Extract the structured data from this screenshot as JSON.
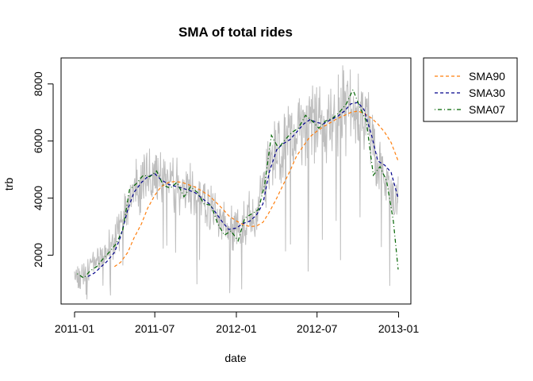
{
  "chart_data": {
    "type": "line",
    "title": "SMA of total rides",
    "xlabel": "date",
    "ylabel": "trb",
    "x_ticks": [
      "2011-01",
      "2011-07",
      "2012-01",
      "2012-07",
      "2013-01"
    ],
    "y_ticks": [
      2000,
      4000,
      6000,
      8000
    ],
    "xlim": [
      "2011-01-01",
      "2012-12-31"
    ],
    "ylim": [
      400,
      8800
    ],
    "legend_position": "top-right outside plot",
    "series": [
      {
        "name": "trb",
        "color": "#bebebe",
        "line_style": "solid",
        "monthly_mean": [
          {
            "x": "2011-01",
            "y": 1230
          },
          {
            "x": "2011-02",
            "y": 1720
          },
          {
            "x": "2011-03",
            "y": 2070
          },
          {
            "x": "2011-04",
            "y": 3160
          },
          {
            "x": "2011-05",
            "y": 4380
          },
          {
            "x": "2011-06",
            "y": 4780
          },
          {
            "x": "2011-07",
            "y": 4560
          },
          {
            "x": "2011-08",
            "y": 4410
          },
          {
            "x": "2011-09",
            "y": 4250
          },
          {
            "x": "2011-10",
            "y": 3980
          },
          {
            "x": "2011-11",
            "y": 3410
          },
          {
            "x": "2011-12",
            "y": 2820
          },
          {
            "x": "2012-01",
            "y": 3120
          },
          {
            "x": "2012-02",
            "y": 3560
          },
          {
            "x": "2012-03",
            "y": 5320
          },
          {
            "x": "2012-04",
            "y": 5810
          },
          {
            "x": "2012-05",
            "y": 6320
          },
          {
            "x": "2012-06",
            "y": 6760
          },
          {
            "x": "2012-07",
            "y": 6560
          },
          {
            "x": "2012-08",
            "y": 6920
          },
          {
            "x": "2012-09",
            "y": 7280
          },
          {
            "x": "2012-10",
            "y": 6900
          },
          {
            "x": "2012-11",
            "y": 5080
          },
          {
            "x": "2012-12",
            "y": 3990
          }
        ]
      },
      {
        "name": "SMA90",
        "color": "#ff7f0e",
        "line_style": "dashed",
        "values": [
          {
            "x": "2011-04-01",
            "y": 1600
          },
          {
            "x": "2011-04-15",
            "y": 1750
          },
          {
            "x": "2011-05-01",
            "y": 2100
          },
          {
            "x": "2011-05-15",
            "y": 2600
          },
          {
            "x": "2011-06-01",
            "y": 3100
          },
          {
            "x": "2011-06-15",
            "y": 3650
          },
          {
            "x": "2011-07-01",
            "y": 4100
          },
          {
            "x": "2011-07-15",
            "y": 4400
          },
          {
            "x": "2011-08-01",
            "y": 4550
          },
          {
            "x": "2011-08-15",
            "y": 4580
          },
          {
            "x": "2011-09-01",
            "y": 4550
          },
          {
            "x": "2011-09-15",
            "y": 4470
          },
          {
            "x": "2011-10-01",
            "y": 4380
          },
          {
            "x": "2011-10-15",
            "y": 4250
          },
          {
            "x": "2011-11-01",
            "y": 4080
          },
          {
            "x": "2011-11-15",
            "y": 3870
          },
          {
            "x": "2011-12-01",
            "y": 3620
          },
          {
            "x": "2011-12-15",
            "y": 3380
          },
          {
            "x": "2012-01-01",
            "y": 3200
          },
          {
            "x": "2012-01-15",
            "y": 3080
          },
          {
            "x": "2012-02-01",
            "y": 3000
          },
          {
            "x": "2012-02-15",
            "y": 3020
          },
          {
            "x": "2012-03-01",
            "y": 3150
          },
          {
            "x": "2012-03-15",
            "y": 3500
          },
          {
            "x": "2012-04-01",
            "y": 4000
          },
          {
            "x": "2012-04-15",
            "y": 4450
          },
          {
            "x": "2012-05-01",
            "y": 4950
          },
          {
            "x": "2012-05-15",
            "y": 5450
          },
          {
            "x": "2012-06-01",
            "y": 5850
          },
          {
            "x": "2012-06-15",
            "y": 6150
          },
          {
            "x": "2012-07-01",
            "y": 6350
          },
          {
            "x": "2012-07-15",
            "y": 6500
          },
          {
            "x": "2012-08-01",
            "y": 6650
          },
          {
            "x": "2012-08-15",
            "y": 6780
          },
          {
            "x": "2012-09-01",
            "y": 6900
          },
          {
            "x": "2012-09-15",
            "y": 7000
          },
          {
            "x": "2012-10-01",
            "y": 7050
          },
          {
            "x": "2012-10-15",
            "y": 6970
          },
          {
            "x": "2012-11-01",
            "y": 6800
          },
          {
            "x": "2012-11-15",
            "y": 6600
          },
          {
            "x": "2012-12-01",
            "y": 6300
          },
          {
            "x": "2012-12-15",
            "y": 5950
          },
          {
            "x": "2012-12-31",
            "y": 5300
          }
        ]
      },
      {
        "name": "SMA30",
        "color": "#00008b",
        "line_style": "dashed",
        "values": [
          {
            "x": "2011-01-31",
            "y": 1250
          },
          {
            "x": "2011-02-15",
            "y": 1380
          },
          {
            "x": "2011-03-01",
            "y": 1580
          },
          {
            "x": "2011-03-15",
            "y": 1780
          },
          {
            "x": "2011-04-01",
            "y": 2100
          },
          {
            "x": "2011-04-15",
            "y": 2650
          },
          {
            "x": "2011-05-01",
            "y": 3600
          },
          {
            "x": "2011-05-15",
            "y": 4200
          },
          {
            "x": "2011-06-01",
            "y": 4550
          },
          {
            "x": "2011-06-15",
            "y": 4750
          },
          {
            "x": "2011-07-01",
            "y": 4850
          },
          {
            "x": "2011-07-15",
            "y": 4650
          },
          {
            "x": "2011-08-01",
            "y": 4480
          },
          {
            "x": "2011-08-15",
            "y": 4420
          },
          {
            "x": "2011-09-01",
            "y": 4350
          },
          {
            "x": "2011-09-15",
            "y": 4280
          },
          {
            "x": "2011-10-01",
            "y": 4180
          },
          {
            "x": "2011-10-15",
            "y": 4000
          },
          {
            "x": "2011-11-01",
            "y": 3800
          },
          {
            "x": "2011-11-15",
            "y": 3500
          },
          {
            "x": "2011-12-01",
            "y": 3150
          },
          {
            "x": "2011-12-15",
            "y": 2900
          },
          {
            "x": "2012-01-01",
            "y": 2950
          },
          {
            "x": "2012-01-15",
            "y": 3100
          },
          {
            "x": "2012-02-01",
            "y": 3200
          },
          {
            "x": "2012-02-15",
            "y": 3400
          },
          {
            "x": "2012-03-01",
            "y": 3800
          },
          {
            "x": "2012-03-15",
            "y": 4900
          },
          {
            "x": "2012-04-01",
            "y": 5700
          },
          {
            "x": "2012-04-15",
            "y": 5900
          },
          {
            "x": "2012-05-01",
            "y": 6050
          },
          {
            "x": "2012-05-15",
            "y": 6300
          },
          {
            "x": "2012-06-01",
            "y": 6600
          },
          {
            "x": "2012-06-15",
            "y": 6750
          },
          {
            "x": "2012-07-01",
            "y": 6650
          },
          {
            "x": "2012-07-15",
            "y": 6600
          },
          {
            "x": "2012-08-01",
            "y": 6750
          },
          {
            "x": "2012-08-15",
            "y": 6850
          },
          {
            "x": "2012-09-01",
            "y": 7050
          },
          {
            "x": "2012-09-15",
            "y": 7300
          },
          {
            "x": "2012-10-01",
            "y": 7350
          },
          {
            "x": "2012-10-15",
            "y": 7100
          },
          {
            "x": "2012-11-01",
            "y": 6200
          },
          {
            "x": "2012-11-15",
            "y": 5300
          },
          {
            "x": "2012-12-01",
            "y": 5150
          },
          {
            "x": "2012-12-15",
            "y": 4900
          },
          {
            "x": "2012-12-31",
            "y": 4000
          }
        ]
      },
      {
        "name": "SMA07",
        "color": "#006400",
        "line_style": "dotdash",
        "values": [
          {
            "x": "2011-01-07",
            "y": 1350
          },
          {
            "x": "2011-01-22",
            "y": 1200
          },
          {
            "x": "2011-02-05",
            "y": 1450
          },
          {
            "x": "2011-02-20",
            "y": 1600
          },
          {
            "x": "2011-03-05",
            "y": 1850
          },
          {
            "x": "2011-03-20",
            "y": 2100
          },
          {
            "x": "2011-04-05",
            "y": 2400
          },
          {
            "x": "2011-04-20",
            "y": 2900
          },
          {
            "x": "2011-05-05",
            "y": 4300
          },
          {
            "x": "2011-05-20",
            "y": 4500
          },
          {
            "x": "2011-06-05",
            "y": 4800
          },
          {
            "x": "2011-06-20",
            "y": 4750
          },
          {
            "x": "2011-07-05",
            "y": 4950
          },
          {
            "x": "2011-07-20",
            "y": 4450
          },
          {
            "x": "2011-08-05",
            "y": 4350
          },
          {
            "x": "2011-08-20",
            "y": 4550
          },
          {
            "x": "2011-09-05",
            "y": 4050
          },
          {
            "x": "2011-09-20",
            "y": 4400
          },
          {
            "x": "2011-10-05",
            "y": 4200
          },
          {
            "x": "2011-10-20",
            "y": 3800
          },
          {
            "x": "2011-11-05",
            "y": 3750
          },
          {
            "x": "2011-11-20",
            "y": 3100
          },
          {
            "x": "2011-12-05",
            "y": 2700
          },
          {
            "x": "2011-12-20",
            "y": 2850
          },
          {
            "x": "2012-01-05",
            "y": 2500
          },
          {
            "x": "2012-01-20",
            "y": 3300
          },
          {
            "x": "2012-02-05",
            "y": 3450
          },
          {
            "x": "2012-02-20",
            "y": 3600
          },
          {
            "x": "2012-03-05",
            "y": 4500
          },
          {
            "x": "2012-03-20",
            "y": 6200
          },
          {
            "x": "2012-04-05",
            "y": 5750
          },
          {
            "x": "2012-04-20",
            "y": 6050
          },
          {
            "x": "2012-05-05",
            "y": 6300
          },
          {
            "x": "2012-05-20",
            "y": 6450
          },
          {
            "x": "2012-06-05",
            "y": 6900
          },
          {
            "x": "2012-06-20",
            "y": 6700
          },
          {
            "x": "2012-07-05",
            "y": 6450
          },
          {
            "x": "2012-07-20",
            "y": 6700
          },
          {
            "x": "2012-08-05",
            "y": 6800
          },
          {
            "x": "2012-08-20",
            "y": 7000
          },
          {
            "x": "2012-09-05",
            "y": 7300
          },
          {
            "x": "2012-09-20",
            "y": 7800
          },
          {
            "x": "2012-10-05",
            "y": 7200
          },
          {
            "x": "2012-10-20",
            "y": 6700
          },
          {
            "x": "2012-11-05",
            "y": 4800
          },
          {
            "x": "2012-11-20",
            "y": 5100
          },
          {
            "x": "2012-12-05",
            "y": 4600
          },
          {
            "x": "2012-12-20",
            "y": 3200
          },
          {
            "x": "2012-12-31",
            "y": 1500
          }
        ]
      }
    ]
  }
}
